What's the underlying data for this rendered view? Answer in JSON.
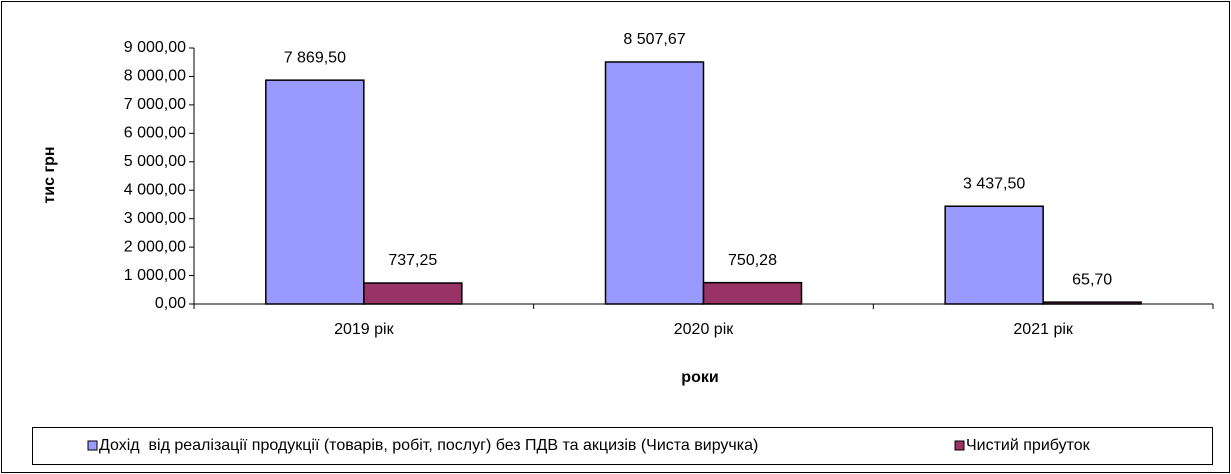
{
  "chart_data": {
    "type": "bar",
    "x_label": "роки",
    "y_label": "тис грн",
    "categories": [
      "2019 рік",
      "2020 рік",
      "2021 рік"
    ],
    "series": [
      {
        "name": "Дохід  від реалізації продукції (товарів, робіт, послуг) без ПДВ та акцизів (Чиста виручка)",
        "color": "#9999ff",
        "values": [
          7869.5,
          8507.67,
          3437.5
        ],
        "value_labels": [
          "7 869,50",
          "8 507,67",
          "3 437,50"
        ]
      },
      {
        "name": "Чистий прибуток",
        "color": "#993366",
        "values": [
          737.25,
          750.28,
          65.7
        ],
        "value_labels": [
          "737,25",
          "750,28",
          "65,70"
        ]
      }
    ],
    "ylim": [
      0,
      9000
    ],
    "yticks": [
      {
        "value": 0,
        "label": "0,00"
      },
      {
        "value": 1000,
        "label": "1 000,00"
      },
      {
        "value": 2000,
        "label": "2 000,00"
      },
      {
        "value": 3000,
        "label": "3 000,00"
      },
      {
        "value": 4000,
        "label": "4 000,00"
      },
      {
        "value": 5000,
        "label": "5 000,00"
      },
      {
        "value": 6000,
        "label": "6 000,00"
      },
      {
        "value": 7000,
        "label": "7 000,00"
      },
      {
        "value": 8000,
        "label": "8 000,00"
      },
      {
        "value": 9000,
        "label": "9 000,00"
      }
    ],
    "legend": "bottom"
  }
}
